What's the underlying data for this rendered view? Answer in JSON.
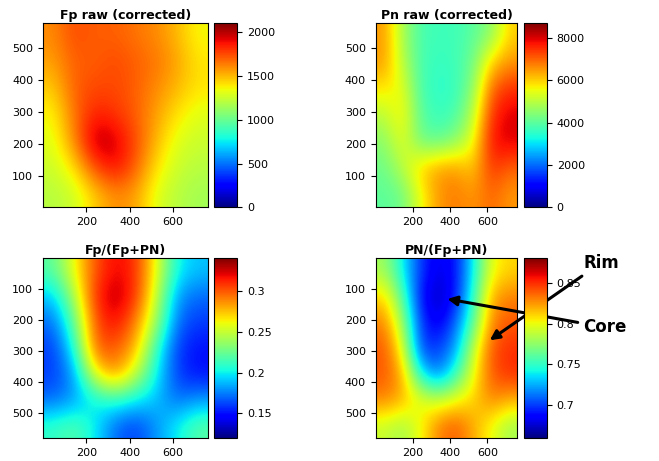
{
  "chart_data": [
    {
      "type": "heatmap",
      "title": "Fp raw (corrected)",
      "xlim": [
        0,
        760
      ],
      "ylim": [
        0,
        580
      ],
      "xticks": [
        200,
        400,
        600
      ],
      "yticks": [
        100,
        200,
        300,
        400,
        500
      ],
      "colorbar_range": [
        0,
        2100
      ],
      "colorbar_ticks": [
        0,
        500,
        1000,
        1500,
        2000
      ],
      "cells": [
        [
          1200,
          1250,
          1450,
          1600,
          1550,
          1300,
          1200,
          1150
        ],
        [
          1250,
          1400,
          1750,
          1900,
          1700,
          1400,
          1250,
          1200
        ],
        [
          1300,
          1600,
          2000,
          1950,
          1750,
          1500,
          1300,
          1250
        ],
        [
          1350,
          1650,
          1850,
          1800,
          1700,
          1550,
          1400,
          1300
        ],
        [
          1450,
          1700,
          1750,
          1750,
          1700,
          1600,
          1500,
          1400
        ],
        [
          1550,
          1700,
          1700,
          1750,
          1700,
          1650,
          1550,
          1400
        ],
        [
          1600,
          1750,
          1700,
          1700,
          1650,
          1600,
          1500,
          1350
        ]
      ]
    },
    {
      "type": "heatmap",
      "title": "Pn raw (corrected)",
      "xlim": [
        0,
        760
      ],
      "ylim": [
        0,
        580
      ],
      "xticks": [
        200,
        400,
        600
      ],
      "yticks": [
        100,
        200,
        300,
        400,
        500
      ],
      "colorbar_range": [
        0,
        8700
      ],
      "colorbar_ticks": [
        0,
        2000,
        4000,
        6000,
        8000
      ],
      "cells": [
        [
          4000,
          4200,
          5500,
          6500,
          6800,
          6500,
          7000,
          6500
        ],
        [
          4200,
          5000,
          6000,
          6500,
          6500,
          6000,
          7500,
          7000
        ],
        [
          4500,
          5500,
          4200,
          4000,
          4500,
          5500,
          7800,
          8000
        ],
        [
          5000,
          5800,
          4000,
          3600,
          3800,
          5000,
          7500,
          8000
        ],
        [
          5800,
          5500,
          3800,
          3500,
          3600,
          4500,
          7000,
          7500
        ],
        [
          6500,
          5000,
          3800,
          3600,
          3700,
          4200,
          6000,
          6500
        ],
        [
          6500,
          4800,
          3800,
          3700,
          3700,
          4000,
          4500,
          6000
        ]
      ]
    },
    {
      "type": "heatmap",
      "title": "Fp/(Fp+PN)",
      "xlim": [
        0,
        760
      ],
      "ylim": [
        580,
        0
      ],
      "xticks": [
        200,
        400,
        600
      ],
      "yticks": [
        100,
        200,
        300,
        400,
        500
      ],
      "colorbar_range": [
        0.12,
        0.34
      ],
      "colorbar_ticks": [
        0.15,
        0.2,
        0.25,
        0.3
      ],
      "cells": [
        [
          0.22,
          0.26,
          0.3,
          0.32,
          0.31,
          0.26,
          0.2,
          0.19
        ],
        [
          0.19,
          0.24,
          0.31,
          0.33,
          0.31,
          0.25,
          0.18,
          0.17
        ],
        [
          0.17,
          0.22,
          0.3,
          0.32,
          0.29,
          0.24,
          0.17,
          0.16
        ],
        [
          0.16,
          0.2,
          0.3,
          0.3,
          0.28,
          0.21,
          0.16,
          0.15
        ],
        [
          0.16,
          0.18,
          0.26,
          0.29,
          0.25,
          0.2,
          0.16,
          0.15
        ],
        [
          0.17,
          0.18,
          0.2,
          0.21,
          0.2,
          0.19,
          0.17,
          0.18
        ],
        [
          0.21,
          0.22,
          0.2,
          0.17,
          0.16,
          0.18,
          0.2,
          0.22
        ]
      ]
    },
    {
      "type": "heatmap",
      "title": "PN/(Fp+PN)",
      "xlim": [
        0,
        760
      ],
      "ylim": [
        580,
        0
      ],
      "xticks": [
        200,
        400,
        600
      ],
      "yticks": [
        100,
        200,
        300,
        400,
        500
      ],
      "colorbar_range": [
        0.66,
        0.88
      ],
      "colorbar_ticks": [
        0.7,
        0.75,
        0.8,
        0.85
      ],
      "cells": [
        [
          0.78,
          0.74,
          0.7,
          0.68,
          0.69,
          0.74,
          0.8,
          0.81
        ],
        [
          0.81,
          0.76,
          0.69,
          0.67,
          0.69,
          0.75,
          0.82,
          0.83
        ],
        [
          0.83,
          0.78,
          0.7,
          0.68,
          0.71,
          0.76,
          0.83,
          0.84
        ],
        [
          0.84,
          0.8,
          0.7,
          0.7,
          0.72,
          0.79,
          0.84,
          0.85
        ],
        [
          0.84,
          0.82,
          0.74,
          0.71,
          0.75,
          0.8,
          0.84,
          0.85
        ],
        [
          0.83,
          0.82,
          0.8,
          0.79,
          0.8,
          0.81,
          0.83,
          0.82
        ],
        [
          0.79,
          0.78,
          0.8,
          0.83,
          0.84,
          0.82,
          0.8,
          0.78
        ]
      ],
      "annotations": [
        {
          "text": "Core",
          "x": 370,
          "y": 130
        },
        {
          "text": "Rim",
          "x": 600,
          "y": 270
        }
      ]
    }
  ]
}
